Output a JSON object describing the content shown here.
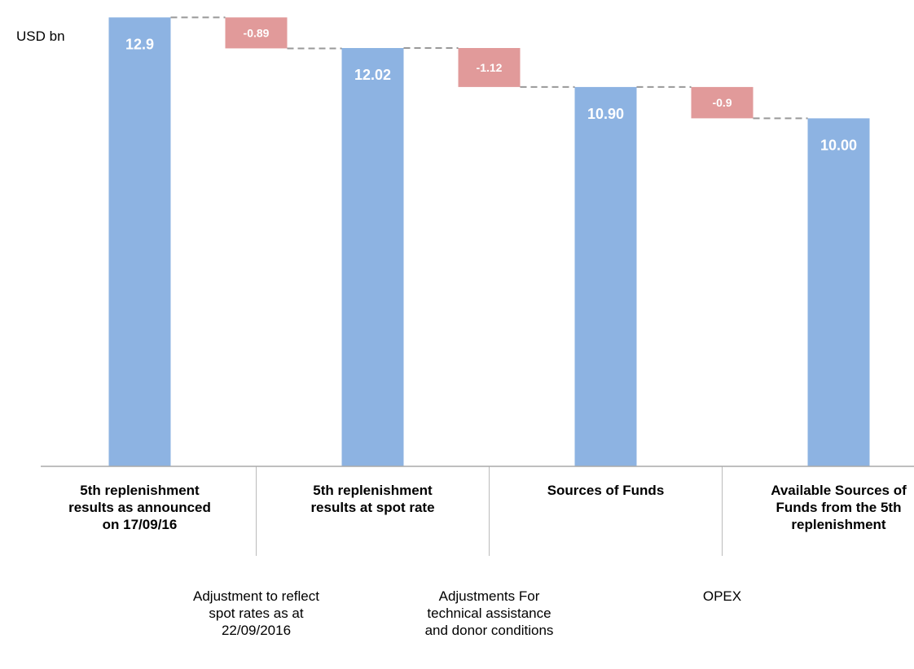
{
  "chart_data": {
    "type": "waterfall",
    "unit_label": "USD bn",
    "categories": [
      "5th replenishment results as announced on 17/09/16",
      "Adjustment to reflect spot rates as at 22/09/2016",
      "5th replenishment results at spot rate",
      "Adjustments For technical assistance and donor conditions",
      "Sources of Funds",
      "OPEX",
      "Available Sources of Funds from the 5th replenishment"
    ],
    "values": [
      12.9,
      -0.89,
      12.02,
      -1.12,
      10.9,
      -0.9,
      10.0
    ],
    "value_labels": [
      "12.9",
      "-0.89",
      "12.02",
      "-1.12",
      "10.90",
      "-0.9",
      "10.00"
    ],
    "colors": {
      "total": "#8db3e2",
      "decrease": "#e19a9a"
    },
    "ylim": [
      0,
      13.4
    ]
  }
}
